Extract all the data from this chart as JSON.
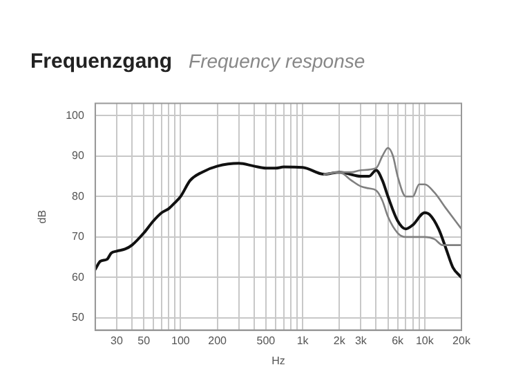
{
  "chart_data": {
    "type": "line",
    "title": "Frequenzgang",
    "subtitle": "Frequency response",
    "xlabel": "Hz",
    "ylabel": "dB",
    "log": "x",
    "grid": true,
    "legend": false,
    "marker": "none",
    "line_style": "solid",
    "xlim": [
      20,
      20000
    ],
    "ylim": [
      47,
      103
    ],
    "xticks": [
      {
        "value": 20,
        "label": null
      },
      30,
      {
        "value": 40,
        "label": null
      },
      50,
      {
        "value": 60,
        "label": null
      },
      {
        "value": 70,
        "label": null
      },
      {
        "value": 80,
        "label": null
      },
      {
        "value": 90,
        "label": null
      },
      100,
      200,
      {
        "value": 300,
        "label": null
      },
      {
        "value": 400,
        "label": null
      },
      500,
      {
        "value": 600,
        "label": null
      },
      {
        "value": 700,
        "label": null
      },
      {
        "value": 800,
        "label": null
      },
      {
        "value": 900,
        "label": null
      },
      {
        "value": 1000,
        "label": "1k"
      },
      {
        "value": 2000,
        "label": "2k"
      },
      {
        "value": 3000,
        "label": "3k"
      },
      {
        "value": 4000,
        "label": null
      },
      {
        "value": 5000,
        "label": null
      },
      {
        "value": 6000,
        "label": "6k"
      },
      {
        "value": 7000,
        "label": null
      },
      {
        "value": 8000,
        "label": null
      },
      {
        "value": 9000,
        "label": null
      },
      {
        "value": 10000,
        "label": "10k"
      },
      {
        "value": 20000,
        "label": "20k"
      }
    ],
    "yticks": [
      50,
      60,
      70,
      80,
      90,
      100
    ],
    "series": [
      {
        "color": "#808080",
        "x": [
          1500,
          2000,
          2500,
          3000,
          4000,
          4500,
          5000,
          5500,
          6000,
          7000,
          8000,
          9000,
          10000,
          12000,
          15000,
          20000
        ],
        "values": [
          85.5,
          86,
          86,
          86.5,
          87,
          90,
          92,
          90,
          85,
          80,
          80,
          83,
          83,
          81,
          77,
          72
        ]
      },
      {
        "color": "#808080",
        "x": [
          1500,
          2000,
          2500,
          3000,
          3500,
          4000,
          4500,
          5000,
          6000,
          7000,
          10000,
          12000,
          14000,
          20000
        ],
        "values": [
          85.5,
          86,
          84,
          82.5,
          82,
          81.5,
          79,
          75,
          71,
          70,
          70,
          69.5,
          68,
          68
        ]
      },
      {
        "color": "#111111",
        "x": [
          20,
          22,
          25,
          27,
          30,
          35,
          40,
          50,
          60,
          70,
          80,
          90,
          100,
          120,
          150,
          200,
          300,
          400,
          500,
          600,
          700,
          1000,
          1500,
          2000,
          3000,
          3500,
          4000,
          4500,
          5000,
          6000,
          7000,
          8000,
          10000,
          11000,
          13000,
          15000,
          17000,
          20000
        ],
        "values": [
          62,
          64,
          64.5,
          66,
          66.5,
          67,
          68,
          71,
          74,
          76,
          77,
          78.5,
          80,
          84,
          86,
          87.5,
          88.2,
          87.5,
          87,
          87,
          87.3,
          87.2,
          85.5,
          86,
          85,
          85,
          86.5,
          84,
          80,
          74,
          72,
          73,
          76,
          75.5,
          72,
          67,
          62.5,
          60
        ]
      }
    ]
  }
}
